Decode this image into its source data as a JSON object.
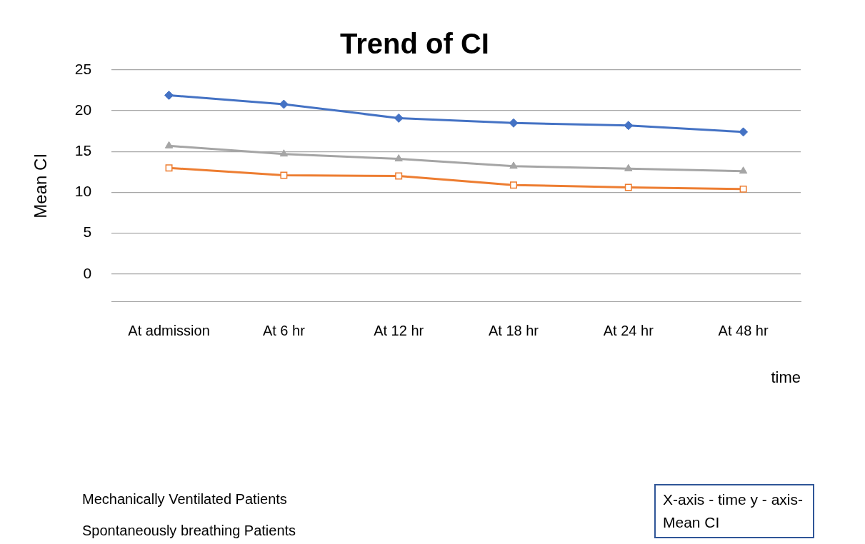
{
  "chart_data": {
    "type": "line",
    "title": "Trend of CI",
    "xlabel": "time",
    "ylabel": "Mean CI",
    "categories": [
      "At admission",
      "At 6 hr",
      "At 12 hr",
      "At 18 hr",
      "At 24 hr",
      "At 48 hr"
    ],
    "series": [
      {
        "color": "#4472c4",
        "marker": "diamond",
        "values": [
          21.9,
          20.8,
          19.1,
          18.5,
          18.2,
          17.4
        ]
      },
      {
        "color": "#a5a5a5",
        "marker": "triangle",
        "values": [
          15.7,
          14.7,
          14.1,
          13.2,
          12.9,
          12.6
        ]
      },
      {
        "color": "#ed7d31",
        "marker": "square",
        "values": [
          13.0,
          12.1,
          12.0,
          10.9,
          10.6,
          10.4
        ]
      }
    ],
    "ylim": [
      -3.4,
      25
    ],
    "yticks": [
      0,
      5,
      10,
      15,
      20,
      25
    ],
    "grid": "y",
    "legend": false,
    "annotations": [
      "Mechanically Ventilated Patients",
      "Spontaneously breathing Patients",
      "X-axis - time y - axis- Mean CI"
    ]
  }
}
